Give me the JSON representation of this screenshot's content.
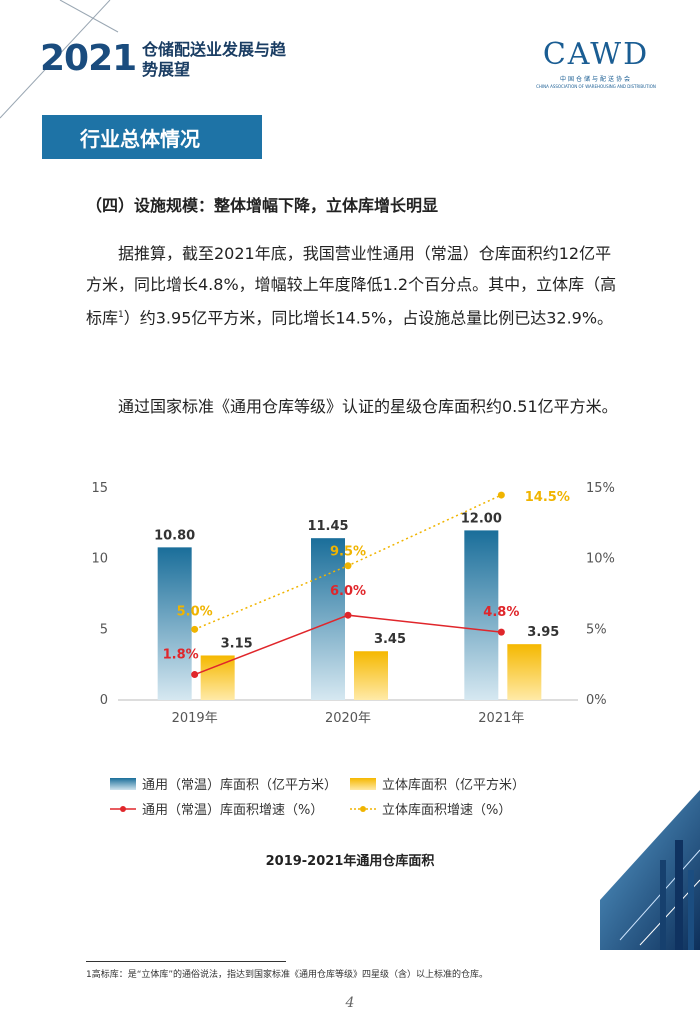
{
  "header": {
    "year": "2021",
    "title": "仓储配送业发展与趋势展望",
    "org_logo": "CAWD",
    "org_cn": "中国仓储与配送协会",
    "org_en": "CHINA ASSOCIATION OF WAREHOUSING AND DISTRIBUTION"
  },
  "section": {
    "title": "行业总体情况"
  },
  "heading": "（四）设施规模：整体增幅下降，立体库增长明显",
  "paragraph1_a": "据推算，截至2021年底，我国营业性通用（常温）仓库面积约12亿平方米，同比增长4.8%，增幅较上年度降低1.2个百分点。其中，立体库（高标库",
  "paragraph1_sup": "1",
  "paragraph1_b": "）约3.95亿平方米，同比增长14.5%，占设施总量比例已达32.9%。",
  "paragraph2": "通过国家标准《通用仓库等级》认证的星级仓库面积约0.51亿平方米。",
  "chart_data": {
    "type": "bar",
    "categories": [
      "2019年",
      "2020年",
      "2021年"
    ],
    "series": [
      {
        "name": "通用（常温）库面积（亿平方米）",
        "type": "bar",
        "axis": "left",
        "values": [
          10.8,
          11.45,
          12.0
        ],
        "labels": [
          "10.80",
          "11.45",
          "12.00"
        ],
        "color": "#1a6e9a"
      },
      {
        "name": "立体库面积（亿平方米）",
        "type": "bar",
        "axis": "left",
        "values": [
          3.15,
          3.45,
          3.95
        ],
        "labels": [
          "3.15",
          "3.45",
          "3.95"
        ],
        "color": "#f5b800"
      },
      {
        "name": "通用（常温）库面积增速（%）",
        "type": "line",
        "axis": "right",
        "values": [
          1.8,
          6.0,
          4.8
        ],
        "labels": [
          "1.8%",
          "6.0%",
          "4.8%"
        ],
        "color": "#e0262b"
      },
      {
        "name": "立体库面积增速（%）",
        "type": "line",
        "axis": "right",
        "values": [
          5.0,
          9.5,
          14.5
        ],
        "labels": [
          "5.0%",
          "9.5%",
          "14.5%"
        ],
        "color": "#f0b400"
      }
    ],
    "y_left": {
      "range": [
        0,
        15
      ],
      "ticks": [
        "0",
        "5",
        "10",
        "15"
      ]
    },
    "y_right": {
      "range": [
        0,
        15
      ],
      "ticks": [
        "0%",
        "5%",
        "10%",
        "15%"
      ]
    },
    "grid": false,
    "legend_position": "bottom",
    "caption": "2019-2021年通用仓库面积"
  },
  "footnote": "1高标库：是“立体库”的通俗说法，指达到国家标准《通用仓库等级》四星级（含）以上标准的仓库。",
  "page_number": "4"
}
